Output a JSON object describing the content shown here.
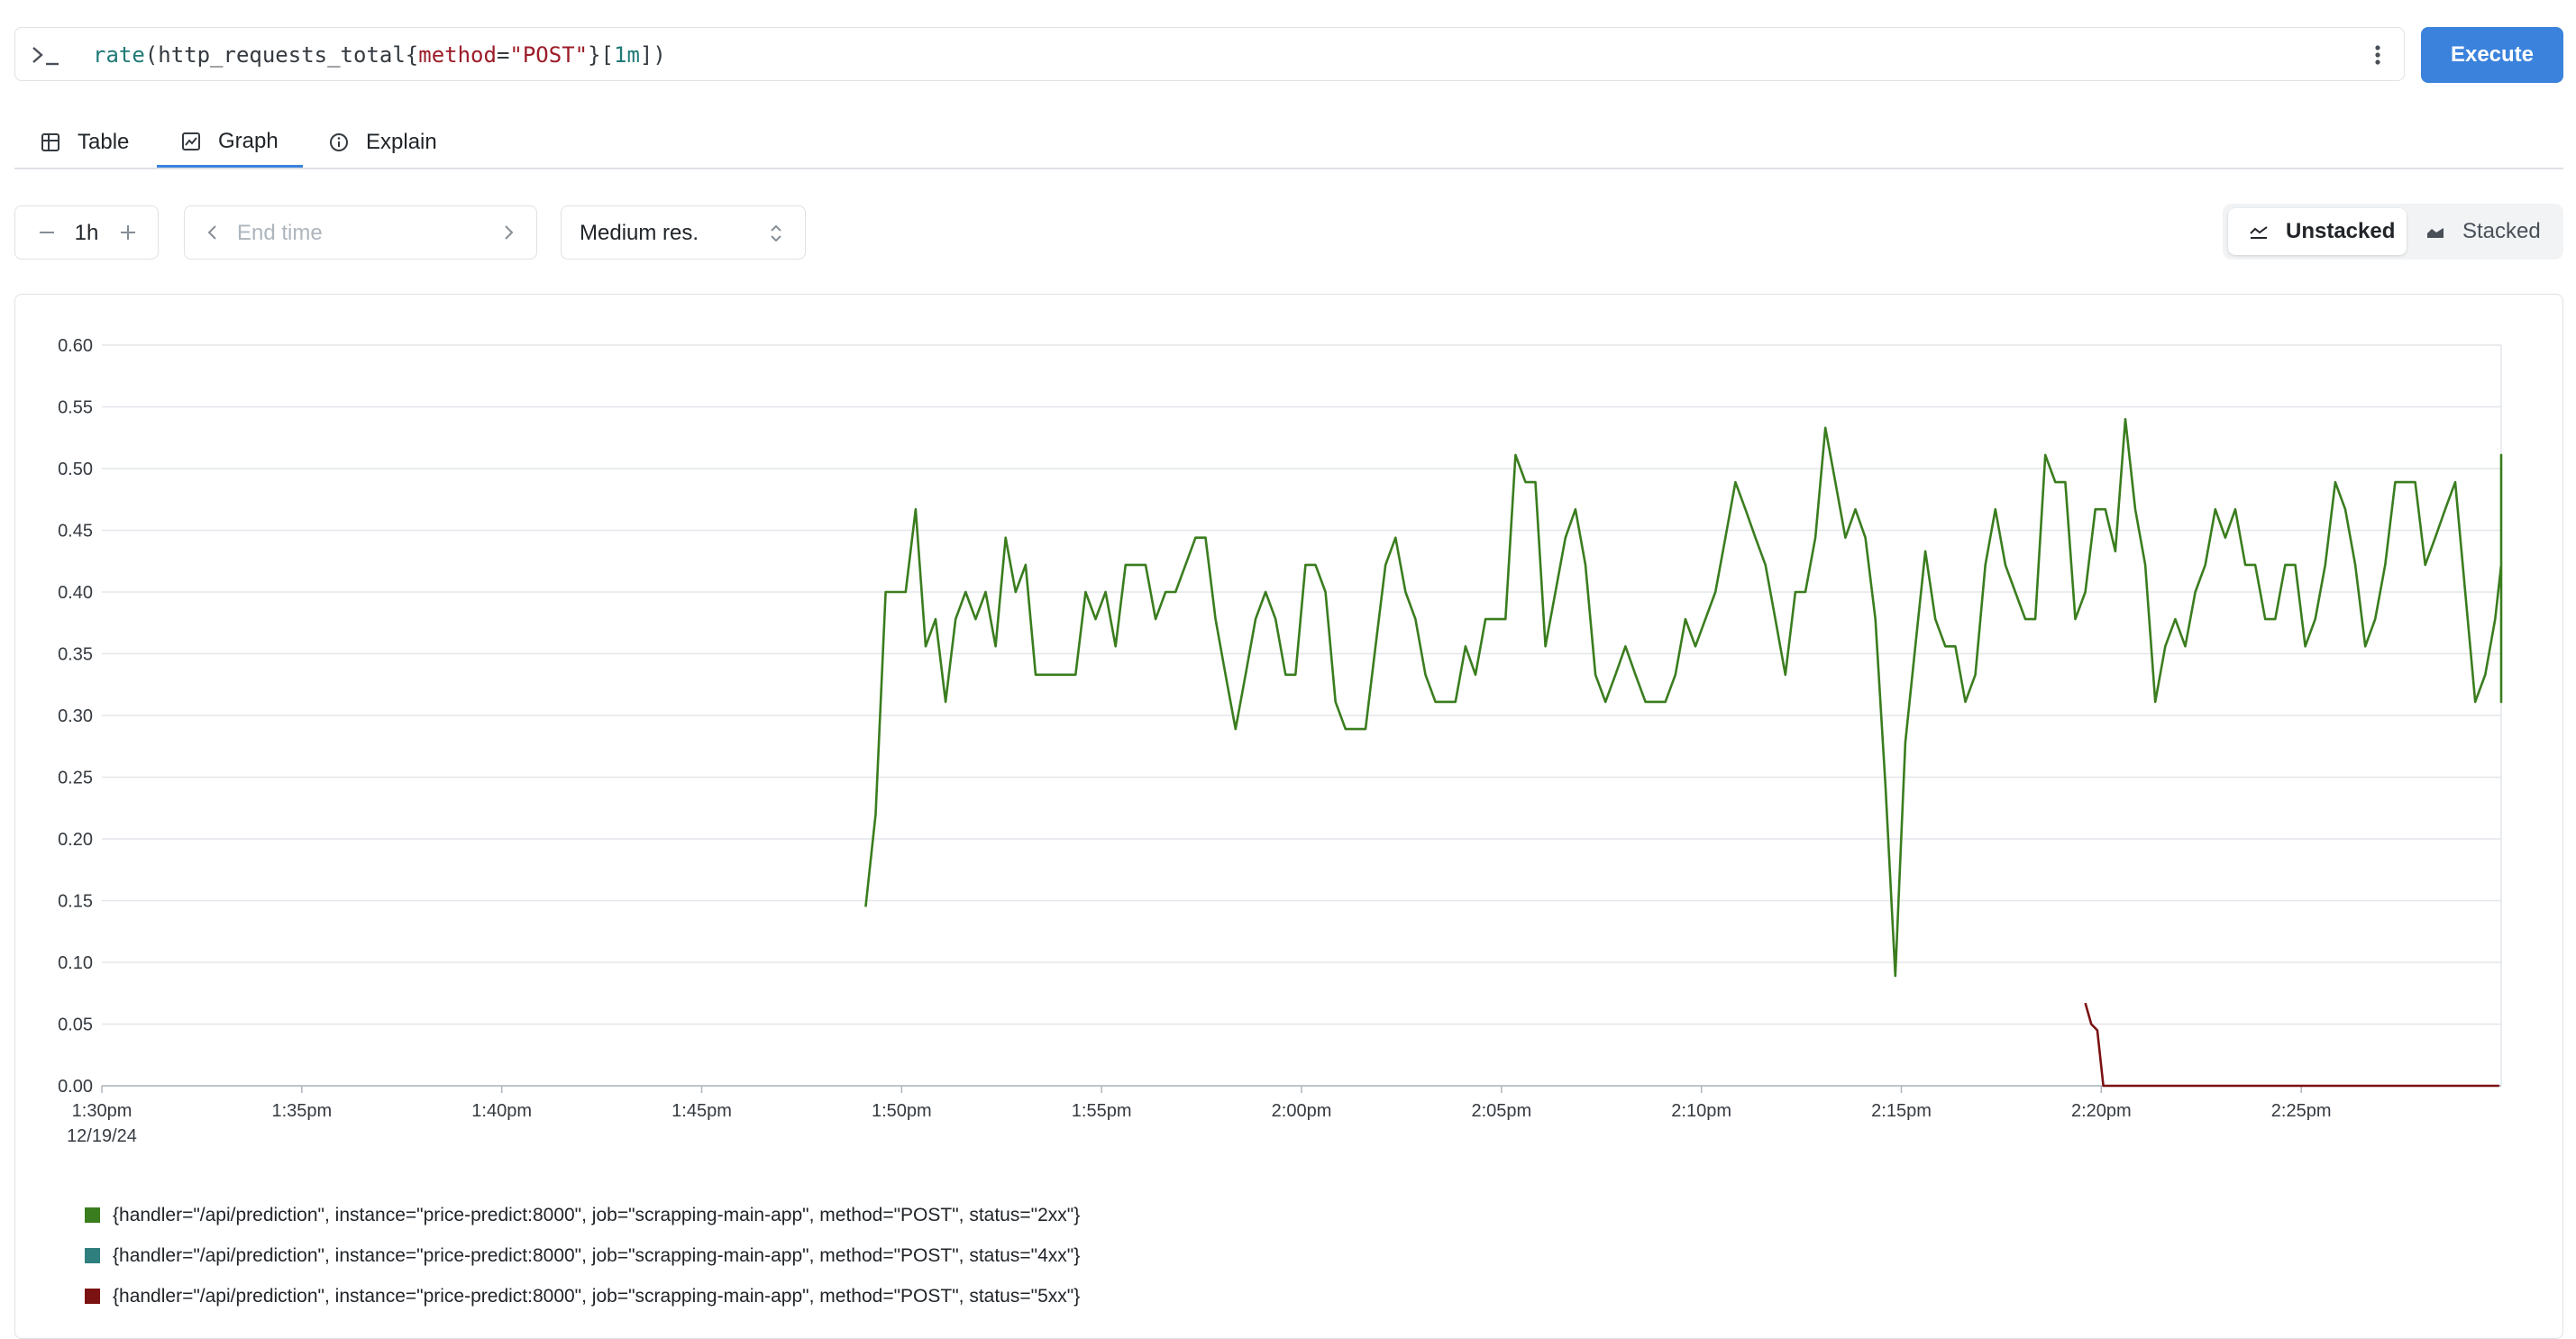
{
  "query": {
    "fn": "rate",
    "metric": "http_requests_total",
    "label_name": "method",
    "label_value": "\"POST\"",
    "range": "1m"
  },
  "toolbar": {
    "execute_label": "Execute"
  },
  "tabs": [
    {
      "label": "Table",
      "icon": "table-icon",
      "active": false
    },
    {
      "label": "Graph",
      "icon": "graph-icon",
      "active": true
    },
    {
      "label": "Explain",
      "icon": "info-icon",
      "active": false
    }
  ],
  "controls": {
    "range_value": "1h",
    "end_time_placeholder": "End time",
    "resolution": "Medium res."
  },
  "stacking": {
    "unstacked_label": "Unstacked",
    "stacked_label": "Stacked",
    "selected": "Unstacked"
  },
  "colors": {
    "accent": "#3b82dc",
    "series_2xx": "#3a7d1e",
    "series_4xx": "#2f7f7f",
    "series_5xx": "#7a1212"
  },
  "chart_data": {
    "type": "line",
    "ylim": [
      0,
      0.6
    ],
    "y_ticks": [
      "0.00",
      "0.05",
      "0.10",
      "0.15",
      "0.20",
      "0.25",
      "0.30",
      "0.35",
      "0.40",
      "0.45",
      "0.50",
      "0.55",
      "0.60"
    ],
    "x_range_minutes": [
      0,
      60
    ],
    "x_ticks": [
      {
        "m": 0,
        "label": "1:30pm",
        "sub": "12/19/24"
      },
      {
        "m": 5,
        "label": "1:35pm"
      },
      {
        "m": 10,
        "label": "1:40pm"
      },
      {
        "m": 15,
        "label": "1:45pm"
      },
      {
        "m": 20,
        "label": "1:50pm"
      },
      {
        "m": 25,
        "label": "1:55pm"
      },
      {
        "m": 30,
        "label": "2:00pm"
      },
      {
        "m": 35,
        "label": "2:05pm"
      },
      {
        "m": 40,
        "label": "2:10pm"
      },
      {
        "m": 45,
        "label": "2:15pm"
      },
      {
        "m": 50,
        "label": "2:20pm"
      },
      {
        "m": 55,
        "label": "2:25pm"
      }
    ],
    "grid": true,
    "legend_position": "bottom-left",
    "series": [
      {
        "name": "{handler=\"/api/prediction\", instance=\"price-predict:8000\", job=\"scrapping-main-app\", method=\"POST\", status=\"2xx\"}",
        "color": "#3a7d1e",
        "x_start_minute": 19.1,
        "x_step_minute": 0.25,
        "values": [
          0.145,
          0.22,
          0.4,
          0.4,
          0.4,
          0.467,
          0.356,
          0.378,
          0.311,
          0.378,
          0.4,
          0.378,
          0.4,
          0.356,
          0.444,
          0.4,
          0.422,
          0.333,
          0.333,
          0.333,
          0.333,
          0.333,
          0.4,
          0.378,
          0.4,
          0.356,
          0.422,
          0.422,
          0.422,
          0.378,
          0.4,
          0.4,
          0.422,
          0.444,
          0.444,
          0.378,
          0.333,
          0.289,
          0.333,
          0.378,
          0.4,
          0.378,
          0.333,
          0.333,
          0.422,
          0.422,
          0.4,
          0.311,
          0.289,
          0.289,
          0.289,
          0.356,
          0.422,
          0.444,
          0.4,
          0.378,
          0.333,
          0.311,
          0.311,
          0.311,
          0.356,
          0.333,
          0.378,
          0.378,
          0.378,
          0.511,
          0.489,
          0.489,
          0.356,
          0.4,
          0.444,
          0.467,
          0.422,
          0.333,
          0.311,
          0.333,
          0.356,
          0.333,
          0.311,
          0.311,
          0.311,
          0.333,
          0.378,
          0.356,
          0.378,
          0.4,
          0.444,
          0.489,
          0.467,
          0.444,
          0.422,
          0.378,
          0.333,
          0.4,
          0.4,
          0.444,
          0.533,
          0.489,
          0.444,
          0.467,
          0.444,
          0.378,
          0.244,
          0.089,
          0.278,
          0.356,
          0.433,
          0.378,
          0.356,
          0.356,
          0.311,
          0.333,
          0.422,
          0.467,
          0.422,
          0.4,
          0.378,
          0.378,
          0.511,
          0.489,
          0.489,
          0.378,
          0.4,
          0.467,
          0.467,
          0.433,
          0.54,
          0.467,
          0.422,
          0.311,
          0.356,
          0.378,
          0.356,
          0.4,
          0.422,
          0.467,
          0.444,
          0.467,
          0.422,
          0.422,
          0.378,
          0.378,
          0.422,
          0.422,
          0.356,
          0.378,
          0.422,
          0.489,
          0.467,
          0.422,
          0.356,
          0.378,
          0.422,
          0.489,
          0.489,
          0.489,
          0.422,
          0.444,
          0.467,
          0.489,
          0.4,
          0.311,
          0.333,
          0.378,
          0.422,
          0.467,
          0.511,
          0.489,
          0.467,
          0.422,
          0.422,
          0.4,
          0.356,
          0.311,
          0.356,
          0.4
        ]
      },
      {
        "name": "{handler=\"/api/prediction\", instance=\"price-predict:8000\", job=\"scrapping-main-app\", method=\"POST\", status=\"4xx\"}",
        "color": "#2f7f7f",
        "x_start_minute": 0,
        "x_step_minute": 0.25,
        "values": []
      },
      {
        "name": "{handler=\"/api/prediction\", instance=\"price-predict:8000\", job=\"scrapping-main-app\", method=\"POST\", status=\"5xx\"}",
        "color": "#7a1212",
        "x_start_minute": 49.6,
        "x_step_minute": 0.15,
        "values": [
          0.067,
          0.05,
          0.045,
          0,
          0,
          0,
          0,
          0,
          0,
          0,
          0,
          0,
          0,
          0,
          0,
          0,
          0,
          0,
          0,
          0,
          0,
          0,
          0,
          0,
          0,
          0,
          0,
          0,
          0,
          0,
          0,
          0,
          0,
          0,
          0,
          0,
          0,
          0,
          0,
          0,
          0,
          0,
          0,
          0,
          0,
          0,
          0,
          0,
          0,
          0,
          0,
          0,
          0,
          0,
          0,
          0,
          0,
          0,
          0,
          0,
          0,
          0,
          0,
          0,
          0,
          0,
          0,
          0,
          0,
          0
        ]
      }
    ]
  }
}
